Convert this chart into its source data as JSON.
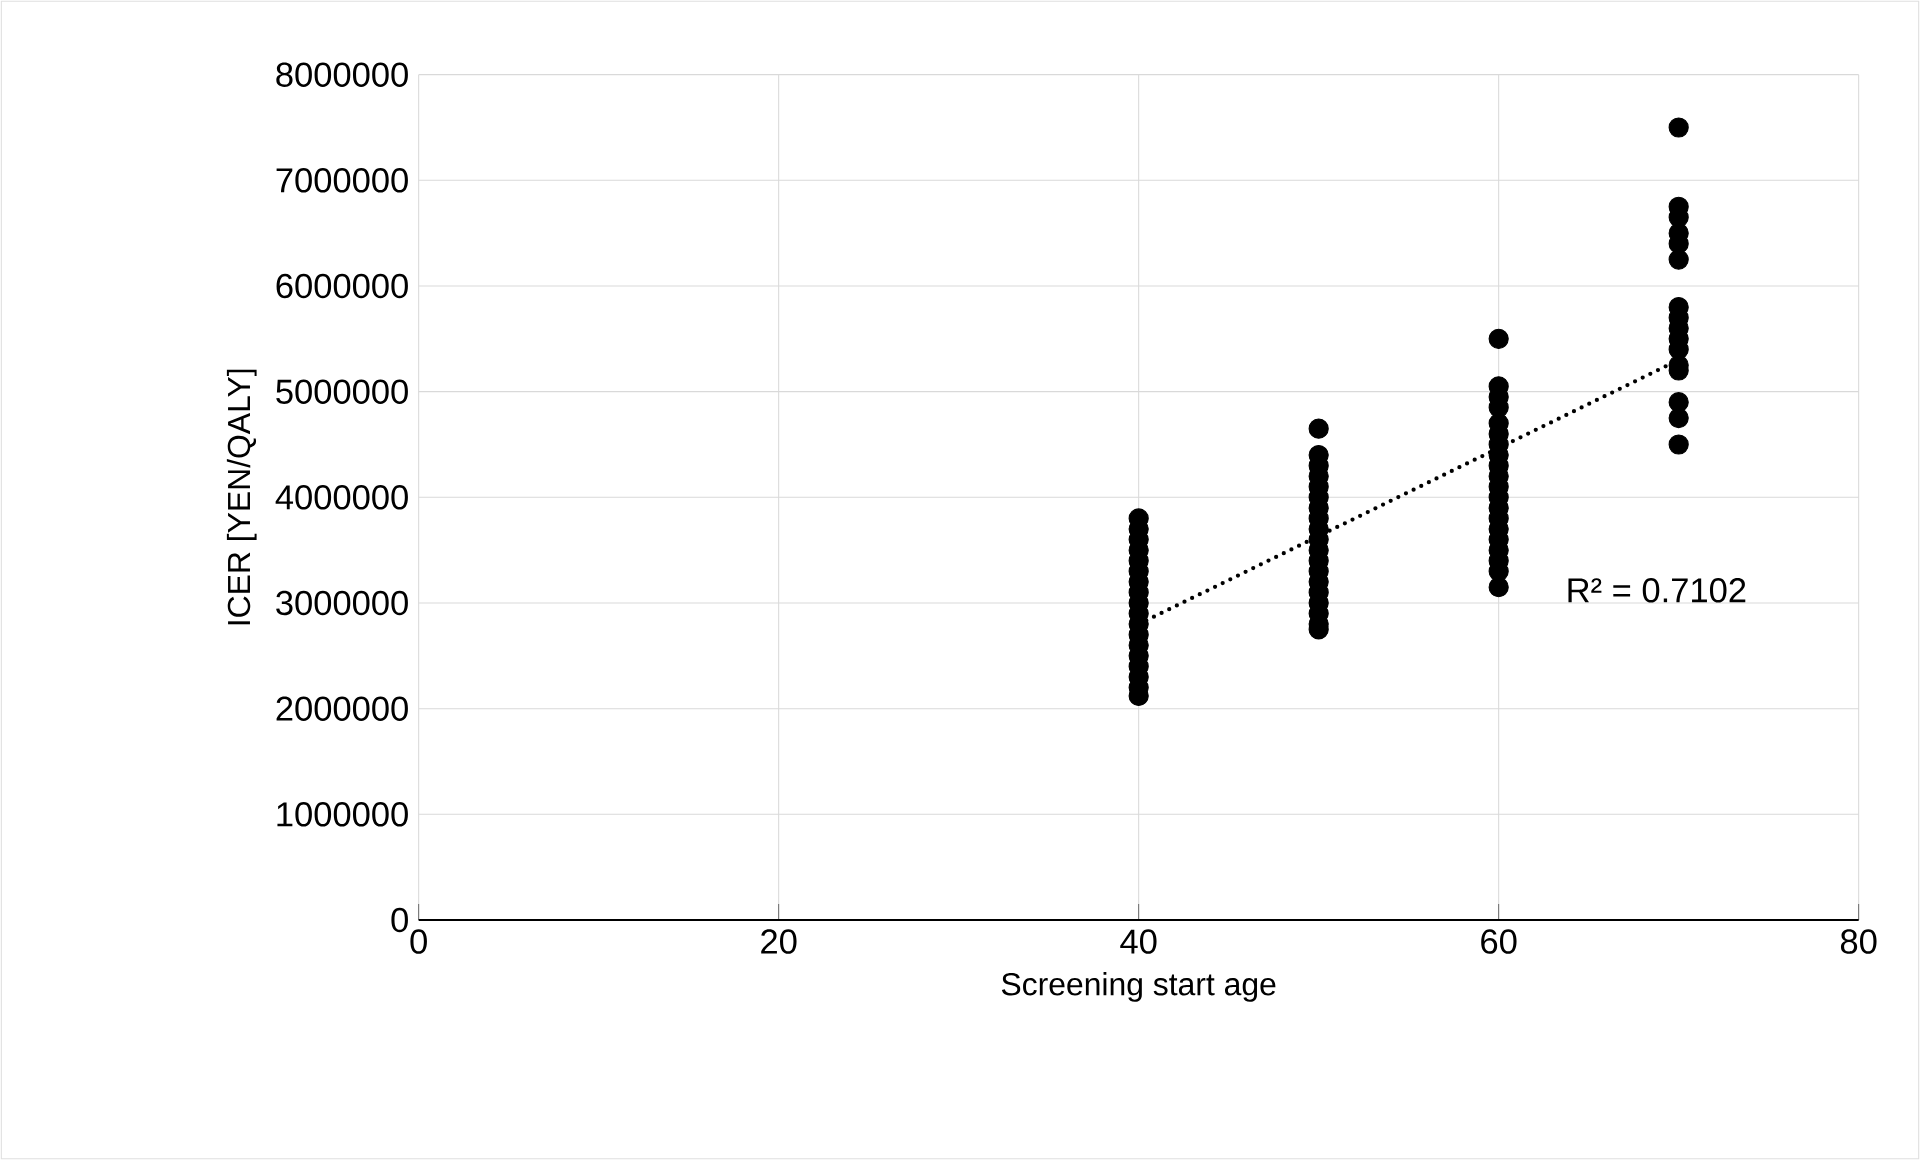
{
  "chart_data": {
    "type": "scatter",
    "xlabel": "Screening start age",
    "ylabel": "ICER [YEN/QALY]",
    "xlim": [
      0,
      80
    ],
    "xticks": [
      0,
      20,
      40,
      60,
      80
    ],
    "ylim": [
      0,
      8000000
    ],
    "yticks": [
      0,
      1000000,
      2000000,
      3000000,
      4000000,
      5000000,
      6000000,
      7000000,
      8000000
    ],
    "grid": true,
    "marker": "circle",
    "annotations": [
      "R² = 0.7102"
    ],
    "series": [
      {
        "color": "#000000",
        "x": [
          40,
          40,
          40,
          40,
          40,
          40,
          40,
          40,
          40,
          40,
          40,
          40,
          40,
          40,
          40,
          40,
          40,
          40,
          50,
          50,
          50,
          50,
          50,
          50,
          50,
          50,
          50,
          50,
          50,
          50,
          50,
          50,
          50,
          50,
          50,
          50,
          50,
          60,
          60,
          60,
          60,
          60,
          60,
          60,
          60,
          60,
          60,
          60,
          60,
          60,
          60,
          60,
          60,
          60,
          60,
          60,
          60,
          70,
          70,
          70,
          70,
          70,
          70,
          70,
          70,
          70,
          70,
          70,
          70,
          70,
          70,
          70,
          70
        ],
        "values": [
          3800000,
          3700000,
          3600000,
          3500000,
          3400000,
          3300000,
          3200000,
          3100000,
          3000000,
          2900000,
          2800000,
          2700000,
          2600000,
          2500000,
          2400000,
          2300000,
          2200000,
          2120000,
          4650000,
          4400000,
          4300000,
          4200000,
          4100000,
          4000000,
          3900000,
          3800000,
          3700000,
          3600000,
          3500000,
          3400000,
          3300000,
          3200000,
          3100000,
          3000000,
          2900000,
          2800000,
          2750000,
          5500000,
          5050000,
          4950000,
          4850000,
          4700000,
          4600000,
          4500000,
          4400000,
          4300000,
          4200000,
          4100000,
          4000000,
          3900000,
          3800000,
          3700000,
          3600000,
          3500000,
          3400000,
          3300000,
          3150000,
          7500000,
          6750000,
          6650000,
          6500000,
          6400000,
          6250000,
          5800000,
          5700000,
          5600000,
          5500000,
          5400000,
          5250000,
          5200000,
          4900000,
          4750000,
          4500000
        ]
      },
      {
        "type": "line",
        "color": "#000000",
        "line_style": "dotted",
        "marker": "none",
        "x": [
          40,
          70
        ],
        "values": [
          2800000,
          5300000
        ]
      }
    ]
  }
}
